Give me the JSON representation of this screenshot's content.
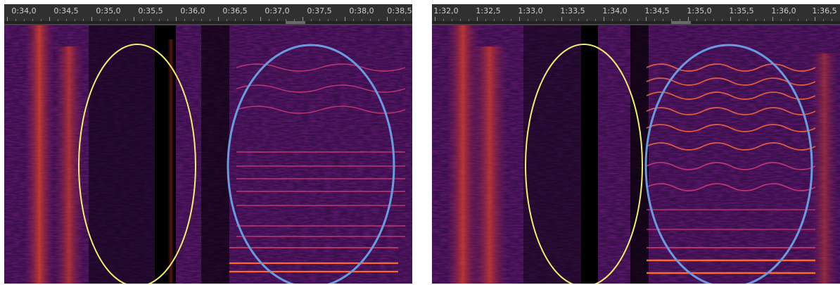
{
  "panels": [
    {
      "id": "left",
      "time_labels": [
        "0:34,0",
        "0:34,5",
        "0:35,0",
        "0:35,5",
        "0:36,0",
        "0:36,5",
        "0:37,0",
        "0:37,5",
        "0:38,0",
        "0:38,5"
      ]
    },
    {
      "id": "right",
      "time_labels": [
        "1:32,0",
        "1:32,5",
        "1:33,0",
        "1:33,5",
        "1:34,0",
        "1:34,5",
        "1:35,0",
        "1:35,5",
        "1:36,0",
        "1:36,5"
      ]
    }
  ],
  "colors": {
    "yellow_marker": "#f4f06a",
    "blue_marker": "#6a9be0",
    "ruler_bg": "#303030",
    "spectrogram_low": "#1a0a30",
    "spectrogram_mid": "#7a1f7a",
    "spectrogram_high": "#ff5020"
  }
}
